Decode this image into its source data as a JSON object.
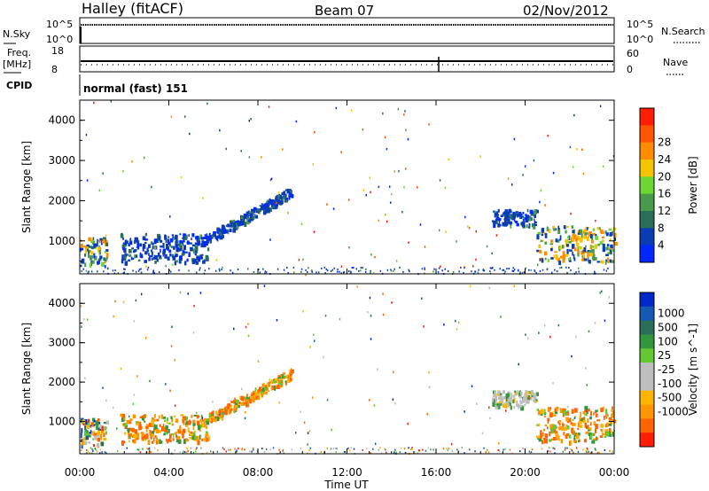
{
  "header": {
    "station": "Halley (fitACF)",
    "beam": "Beam 07",
    "date": "02/Nov/2012"
  },
  "strips": {
    "nsky_label": "N.Sky",
    "nsky_ticks": [
      "10^5",
      "10^0"
    ],
    "nsearch_label": "N.Search",
    "freq_label": "Freq.",
    "freq_unit": "[MHz]",
    "freq_ticks": [
      "18",
      "8"
    ],
    "nave_label": "Nave",
    "nave_ticks": [
      "60",
      "0"
    ],
    "cpid_label": "CPID",
    "cpid_value": "normal (fast) 151"
  },
  "colors": {
    "power": [
      "#0028ff",
      "#0a3cb4",
      "#2a6e5a",
      "#4a9a4c",
      "#6cd632",
      "#f5c400",
      "#ff8c00",
      "#ff5500",
      "#ff1e00"
    ],
    "velocity": [
      "#ff1e00",
      "#ff6400",
      "#ff9600",
      "#ffb400",
      "#bebebe",
      "#bebebe",
      "#64c832",
      "#32963c",
      "#2a6e5a",
      "#145ab4",
      "#0028c8"
    ]
  },
  "chart_data": [
    {
      "type": "heatmap",
      "title": "",
      "xlabel": "",
      "ylabel": "Slant Range [km]",
      "xlim": [
        0,
        24
      ],
      "ylim": [
        180,
        4500
      ],
      "xticks": [
        "00:00",
        "04:00",
        "08:00",
        "12:00",
        "16:00",
        "20:00",
        "00:00"
      ],
      "yticks": [
        1000,
        2000,
        3000,
        4000
      ],
      "colorbar": {
        "label": "Power [dB]",
        "ticks": [
          4,
          8,
          12,
          16,
          20,
          24,
          28
        ]
      },
      "features": [
        {
          "t0": 0.0,
          "t1": 1.2,
          "r0": 400,
          "r1": 1100,
          "class": "mid"
        },
        {
          "t0": 1.8,
          "t1": 5.8,
          "r0": 500,
          "r1": 1200,
          "class": "low"
        },
        {
          "t0": 5.8,
          "t1": 9.5,
          "r0": 1100,
          "r1": 2300,
          "class": "low"
        },
        {
          "t0": 18.5,
          "t1": 20.5,
          "r0": 1400,
          "r1": 1800,
          "class": "low"
        },
        {
          "t0": 20.5,
          "t1": 24.0,
          "r0": 500,
          "r1": 1400,
          "class": "high"
        }
      ]
    },
    {
      "type": "heatmap",
      "title": "",
      "xlabel": "Time UT",
      "ylabel": "Slant Range [km]",
      "xlim": [
        0,
        24
      ],
      "ylim": [
        180,
        4500
      ],
      "xticks": [
        "00:00",
        "04:00",
        "08:00",
        "12:00",
        "16:00",
        "20:00",
        "00:00"
      ],
      "yticks": [
        1000,
        2000,
        3000,
        4000
      ],
      "colorbar": {
        "label": "Velocity [m s^-1]",
        "ticks": [
          1000,
          500,
          100,
          25,
          -25,
          -100,
          -500,
          -1000
        ]
      },
      "features": [
        {
          "t0": 0.0,
          "t1": 1.2,
          "r0": 400,
          "r1": 1100,
          "class": "mix"
        },
        {
          "t0": 1.8,
          "t1": 5.8,
          "r0": 500,
          "r1": 1200,
          "class": "neg"
        },
        {
          "t0": 5.8,
          "t1": 9.5,
          "r0": 1100,
          "r1": 2300,
          "class": "neg"
        },
        {
          "t0": 18.5,
          "t1": 20.5,
          "r0": 1400,
          "r1": 1800,
          "class": "gray"
        },
        {
          "t0": 20.5,
          "t1": 24.0,
          "r0": 500,
          "r1": 1400,
          "class": "neg"
        }
      ]
    }
  ]
}
